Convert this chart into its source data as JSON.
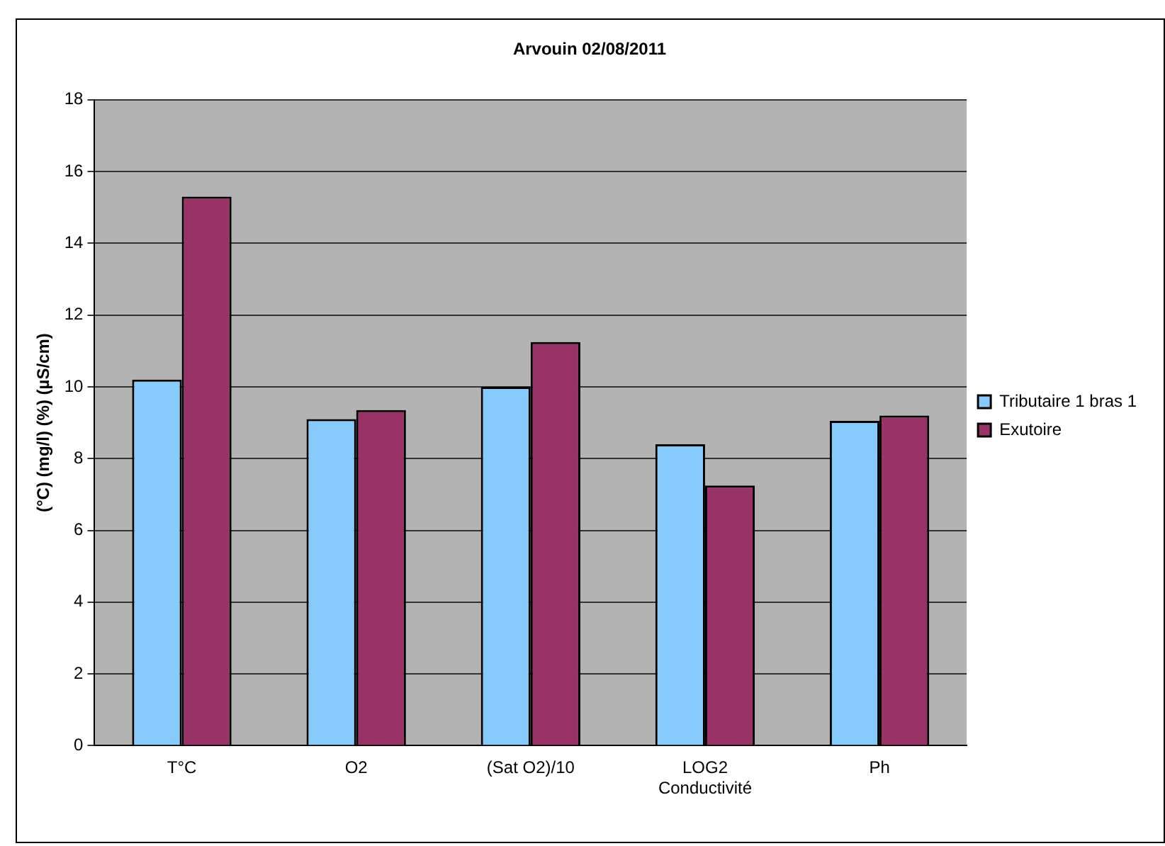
{
  "chart_data": {
    "type": "bar",
    "title": "Arvouin 02/08/2011",
    "ylabel": "(°C) (mg/l) (%) (µS/cm)",
    "categories": [
      "T°C",
      "O2",
      "(Sat O2)/10",
      "LOG2\nConductivité",
      "Ph"
    ],
    "series": [
      {
        "name": "Tributaire 1 bras 1",
        "color": "#87cbfc",
        "values": [
          10.2,
          9.1,
          10.0,
          8.4,
          9.05
        ]
      },
      {
        "name": "Exutoire",
        "color": "#993366",
        "values": [
          15.3,
          9.35,
          11.25,
          7.25,
          9.2
        ]
      }
    ],
    "ylim": [
      0,
      18
    ],
    "yticks": [
      0,
      2,
      4,
      6,
      8,
      10,
      12,
      14,
      16,
      18
    ],
    "grid": "y",
    "legend": "right"
  }
}
